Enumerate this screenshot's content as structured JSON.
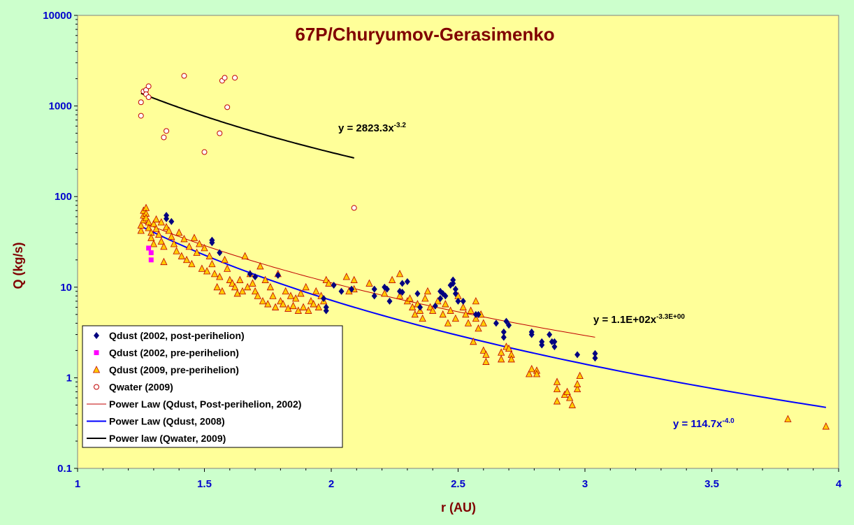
{
  "chart_data": {
    "type": "scatter",
    "title": "67P/Churyumov-Gerasimenko",
    "xlabel": "r (AU)",
    "ylabel": "Q (kg/s)",
    "xlim": [
      1,
      4
    ],
    "ylim": [
      0.1,
      10000
    ],
    "yscale": "log",
    "x_ticks": [
      "1",
      "1.5",
      "2",
      "2.5",
      "3",
      "3.5",
      "4"
    ],
    "y_ticks": [
      "0.1",
      "1",
      "10",
      "100",
      "1000",
      "10000"
    ],
    "colors": {
      "plot_bg": "#ffff99",
      "outer_bg": "#ccffcc",
      "dust_post_2002": "#000080",
      "dust_pre_2002": "#ff00ff",
      "dust_2009_fill": "#ffcc00",
      "dust_2009_edge": "#c00000",
      "water_edge": "#c00000",
      "fit_post_2002": "#c00000",
      "fit_2008": "#0000ff",
      "fit_water": "#000000"
    },
    "series": [
      {
        "name": "Qdust (2002, post-perihelion)",
        "marker": "diamond",
        "points": [
          [
            1.35,
            62
          ],
          [
            1.35,
            57
          ],
          [
            1.37,
            53
          ],
          [
            1.53,
            33
          ],
          [
            1.53,
            31
          ],
          [
            1.56,
            24
          ],
          [
            1.68,
            14
          ],
          [
            1.7,
            13
          ],
          [
            1.79,
            13.5
          ],
          [
            1.97,
            7.5
          ],
          [
            1.98,
            6
          ],
          [
            1.98,
            5.5
          ],
          [
            2.01,
            10.5
          ],
          [
            2.04,
            9
          ],
          [
            2.08,
            9.5
          ],
          [
            2.17,
            9.5
          ],
          [
            2.17,
            8
          ],
          [
            2.21,
            10
          ],
          [
            2.22,
            9.5
          ],
          [
            2.23,
            7
          ],
          [
            2.27,
            9
          ],
          [
            2.28,
            11
          ],
          [
            2.28,
            8.8
          ],
          [
            2.3,
            11.5
          ],
          [
            2.34,
            8.5
          ],
          [
            2.35,
            6
          ],
          [
            2.41,
            6.2
          ],
          [
            2.43,
            7.5
          ],
          [
            2.43,
            9
          ],
          [
            2.44,
            8.5
          ],
          [
            2.45,
            8
          ],
          [
            2.47,
            10.5
          ],
          [
            2.48,
            12
          ],
          [
            2.48,
            11
          ],
          [
            2.49,
            9.5
          ],
          [
            2.49,
            8.5
          ],
          [
            2.5,
            7
          ],
          [
            2.52,
            7
          ],
          [
            2.57,
            5
          ],
          [
            2.58,
            5
          ],
          [
            2.65,
            4
          ],
          [
            2.68,
            3.2
          ],
          [
            2.68,
            2.8
          ],
          [
            2.69,
            4.2
          ],
          [
            2.7,
            3.8
          ],
          [
            2.79,
            3.2
          ],
          [
            2.79,
            3.0
          ],
          [
            2.83,
            2.5
          ],
          [
            2.83,
            2.3
          ],
          [
            2.86,
            3.0
          ],
          [
            2.87,
            2.5
          ],
          [
            2.88,
            2.2
          ],
          [
            2.88,
            2.5
          ],
          [
            2.97,
            1.8
          ],
          [
            3.04,
            1.85
          ],
          [
            3.04,
            1.65
          ]
        ]
      },
      {
        "name": "Qdust (2002, pre-perihelion)",
        "marker": "square",
        "points": [
          [
            1.29,
            20
          ],
          [
            1.29,
            24
          ],
          [
            1.28,
            27
          ]
        ]
      },
      {
        "name": "Qdust (2009, pre-perihelion)",
        "marker": "triangle",
        "points": [
          [
            1.25,
            42
          ],
          [
            1.25,
            48
          ],
          [
            1.26,
            55
          ],
          [
            1.26,
            62
          ],
          [
            1.26,
            70
          ],
          [
            1.27,
            75
          ],
          [
            1.27,
            65
          ],
          [
            1.27,
            58
          ],
          [
            1.28,
            52
          ],
          [
            1.28,
            45
          ],
          [
            1.29,
            40
          ],
          [
            1.29,
            35
          ],
          [
            1.3,
            30
          ],
          [
            1.3,
            50
          ],
          [
            1.31,
            56
          ],
          [
            1.31,
            44
          ],
          [
            1.32,
            38
          ],
          [
            1.33,
            32
          ],
          [
            1.33,
            52
          ],
          [
            1.34,
            28
          ],
          [
            1.34,
            19
          ],
          [
            1.35,
            46
          ],
          [
            1.36,
            42
          ],
          [
            1.37,
            36
          ],
          [
            1.38,
            30
          ],
          [
            1.39,
            25
          ],
          [
            1.4,
            40
          ],
          [
            1.41,
            22
          ],
          [
            1.42,
            34
          ],
          [
            1.43,
            20
          ],
          [
            1.44,
            28
          ],
          [
            1.45,
            18
          ],
          [
            1.46,
            35
          ],
          [
            1.47,
            24
          ],
          [
            1.48,
            30
          ],
          [
            1.49,
            16
          ],
          [
            1.5,
            27
          ],
          [
            1.51,
            15
          ],
          [
            1.52,
            22
          ],
          [
            1.53,
            18
          ],
          [
            1.54,
            14
          ],
          [
            1.55,
            10
          ],
          [
            1.56,
            13
          ],
          [
            1.57,
            9
          ],
          [
            1.58,
            20
          ],
          [
            1.59,
            16
          ],
          [
            1.6,
            12
          ],
          [
            1.61,
            11
          ],
          [
            1.62,
            10
          ],
          [
            1.63,
            8.5
          ],
          [
            1.64,
            12
          ],
          [
            1.65,
            9
          ],
          [
            1.66,
            22
          ],
          [
            1.67,
            10
          ],
          [
            1.68,
            14
          ],
          [
            1.69,
            11
          ],
          [
            1.7,
            9
          ],
          [
            1.71,
            8
          ],
          [
            1.72,
            17
          ],
          [
            1.73,
            7
          ],
          [
            1.74,
            12
          ],
          [
            1.75,
            6.5
          ],
          [
            1.76,
            10
          ],
          [
            1.77,
            8
          ],
          [
            1.78,
            6
          ],
          [
            1.79,
            14
          ],
          [
            1.8,
            7
          ],
          [
            1.81,
            6.5
          ],
          [
            1.82,
            9
          ],
          [
            1.83,
            5.8
          ],
          [
            1.84,
            8
          ],
          [
            1.85,
            6.2
          ],
          [
            1.86,
            7.5
          ],
          [
            1.87,
            5.5
          ],
          [
            1.88,
            8.5
          ],
          [
            1.89,
            6
          ],
          [
            1.9,
            10
          ],
          [
            1.91,
            5.5
          ],
          [
            1.92,
            7
          ],
          [
            1.93,
            6.5
          ],
          [
            1.94,
            9
          ],
          [
            1.95,
            6
          ],
          [
            1.96,
            8
          ],
          [
            1.97,
            7
          ],
          [
            1.98,
            12
          ],
          [
            1.99,
            11
          ],
          [
            2.06,
            13
          ],
          [
            2.07,
            9
          ],
          [
            2.09,
            12
          ],
          [
            2.09,
            9.5
          ],
          [
            2.15,
            11
          ],
          [
            2.21,
            8.5
          ],
          [
            2.24,
            12
          ],
          [
            2.27,
            14
          ],
          [
            2.27,
            8
          ],
          [
            2.3,
            7
          ],
          [
            2.31,
            7.5
          ],
          [
            2.32,
            6
          ],
          [
            2.33,
            5
          ],
          [
            2.34,
            6.5
          ],
          [
            2.35,
            5.5
          ],
          [
            2.36,
            4.5
          ],
          [
            2.37,
            7.5
          ],
          [
            2.38,
            9
          ],
          [
            2.39,
            6
          ],
          [
            2.4,
            5.5
          ],
          [
            2.42,
            7
          ],
          [
            2.44,
            5
          ],
          [
            2.45,
            6.5
          ],
          [
            2.46,
            4
          ],
          [
            2.47,
            5.5
          ],
          [
            2.49,
            4.5
          ],
          [
            2.5,
            8
          ],
          [
            2.52,
            6
          ],
          [
            2.53,
            5
          ],
          [
            2.54,
            4
          ],
          [
            2.55,
            5.5
          ],
          [
            2.56,
            2.5
          ],
          [
            2.57,
            7
          ],
          [
            2.57,
            4.5
          ],
          [
            2.58,
            3.5
          ],
          [
            2.59,
            5
          ],
          [
            2.6,
            4
          ],
          [
            2.6,
            2
          ],
          [
            2.61,
            1.8
          ],
          [
            2.61,
            1.5
          ],
          [
            2.67,
            1.6
          ],
          [
            2.67,
            1.9
          ],
          [
            2.69,
            2.2
          ],
          [
            2.7,
            2.1
          ],
          [
            2.71,
            1.8
          ],
          [
            2.71,
            1.6
          ],
          [
            2.78,
            1.1
          ],
          [
            2.79,
            1.25
          ],
          [
            2.81,
            1.2
          ],
          [
            2.81,
            1.1
          ],
          [
            2.89,
            0.9
          ],
          [
            2.89,
            0.75
          ],
          [
            2.89,
            0.55
          ],
          [
            2.92,
            0.65
          ],
          [
            2.93,
            0.7
          ],
          [
            2.94,
            0.6
          ],
          [
            2.95,
            0.5
          ],
          [
            2.97,
            0.75
          ],
          [
            2.97,
            0.85
          ],
          [
            2.98,
            1.05
          ],
          [
            3.8,
            0.35
          ],
          [
            3.95,
            0.29
          ]
        ]
      },
      {
        "name": "Qwater (2009)",
        "marker": "circle",
        "points": [
          [
            1.25,
            1100
          ],
          [
            1.25,
            780
          ],
          [
            1.26,
            1450
          ],
          [
            1.27,
            1500
          ],
          [
            1.27,
            1350
          ],
          [
            1.28,
            1650
          ],
          [
            1.28,
            1250
          ],
          [
            1.34,
            450
          ],
          [
            1.35,
            530
          ],
          [
            1.42,
            2150
          ],
          [
            1.5,
            310
          ],
          [
            1.56,
            500
          ],
          [
            1.57,
            1900
          ],
          [
            1.58,
            2050
          ],
          [
            1.59,
            970
          ],
          [
            1.62,
            2050
          ],
          [
            2.09,
            75
          ]
        ]
      }
    ],
    "fits": [
      {
        "name": "Power Law (Qdust, Post-perihelion, 2002)",
        "equation": "y = 1.1E+02x",
        "exponent_label": "-3.3E+00",
        "a": 110,
        "b": -3.3,
        "x_range": [
          1.26,
          3.04
        ]
      },
      {
        "name": "Power Law (Qdust, 2008)",
        "equation": "y = 114.7x",
        "exponent_label": "-4.0",
        "a": 114.7,
        "b": -4.0,
        "x_range": [
          1.26,
          3.95
        ]
      },
      {
        "name": "Power law (Qwater, 2009)",
        "equation": "y = 2823.3x",
        "exponent_label": "-3.2",
        "a": 2823.3,
        "b": -3.2,
        "x_range": [
          1.25,
          2.09
        ]
      }
    ],
    "legend_position": "bottom-left"
  }
}
